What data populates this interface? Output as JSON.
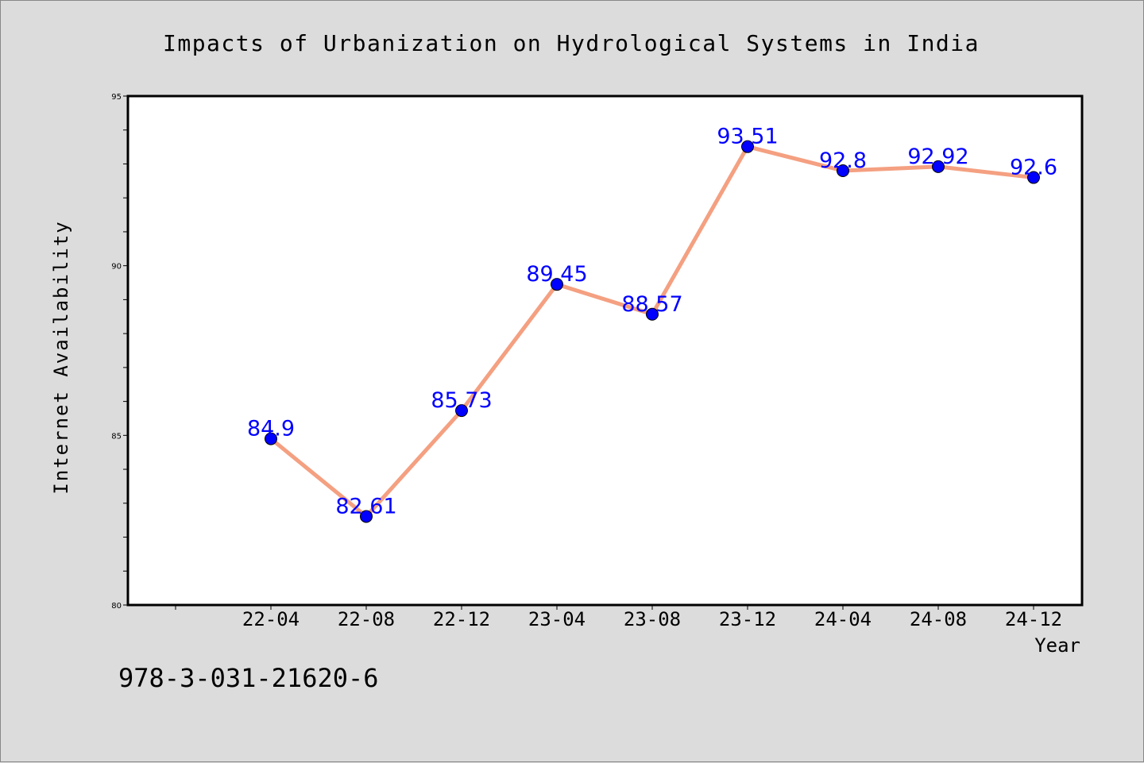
{
  "chart_data": {
    "type": "line",
    "title": "Impacts of Urbanization on Hydrological Systems in India",
    "xlabel": "Year",
    "ylabel": "Internet Availability",
    "categories": [
      "22-04",
      "22-08",
      "22-12",
      "23-04",
      "23-08",
      "23-12",
      "24-04",
      "24-08",
      "24-12"
    ],
    "series": [
      {
        "values": [
          84.9,
          82.61,
          85.73,
          89.45,
          88.57,
          93.51,
          92.8,
          92.92,
          92.6
        ],
        "labels": [
          "84.9",
          "82.61",
          "85.73",
          "89.45",
          "88.57",
          "93.51",
          "92.8",
          "92.92",
          "92.6"
        ],
        "line_color": "#f4a081",
        "marker_color": "#0000ff",
        "label_color": "#0000ff"
      }
    ],
    "ylim": [
      80,
      95
    ],
    "yticks": [
      "80",
      "85",
      "90",
      "95"
    ],
    "grid": false,
    "legend": "none"
  },
  "footer_text": "978-3-031-21620-6"
}
